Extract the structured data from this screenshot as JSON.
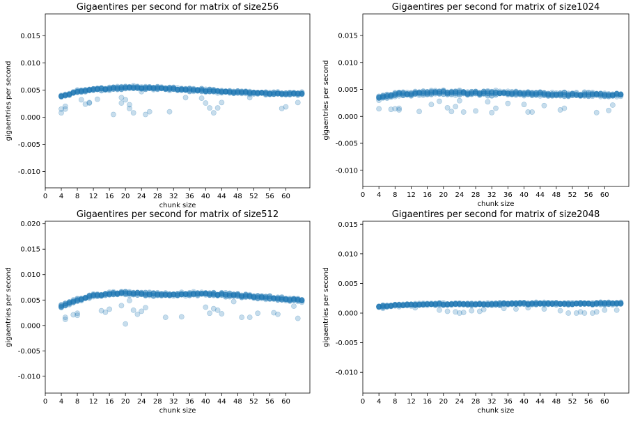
{
  "chart_data": [
    {
      "type": "scatter",
      "title": "Gigaentires per second for matrix of size256",
      "xlabel": "chunk size",
      "ylabel": "gigaentries per second",
      "xlim": [
        0,
        66
      ],
      "ylim": [
        -0.013,
        0.019
      ],
      "xticks": [
        "0",
        "4",
        "8",
        "12",
        "16",
        "20",
        "24",
        "28",
        "32",
        "36",
        "40",
        "44",
        "48",
        "52",
        "56",
        "60"
      ],
      "xtick_values": [
        0,
        4,
        8,
        12,
        16,
        20,
        24,
        28,
        32,
        36,
        40,
        44,
        48,
        52,
        56,
        60
      ],
      "yticks": [
        "-0.010",
        "-0.005",
        "0.000",
        "0.005",
        "0.010",
        "0.015"
      ],
      "ytick_values": [
        -0.01,
        -0.005,
        0,
        0.005,
        0.01,
        0.015
      ],
      "color": "#1f77b4",
      "x_range": [
        4,
        64
      ],
      "trend": [
        [
          4,
          0.0038
        ],
        [
          8,
          0.0047
        ],
        [
          12,
          0.0051
        ],
        [
          16,
          0.0052
        ],
        [
          20,
          0.0055
        ],
        [
          24,
          0.0054
        ],
        [
          28,
          0.0053
        ],
        [
          32,
          0.0052
        ],
        [
          36,
          0.0051
        ],
        [
          40,
          0.0049
        ],
        [
          44,
          0.0047
        ],
        [
          48,
          0.0046
        ],
        [
          52,
          0.0045
        ],
        [
          56,
          0.0044
        ],
        [
          60,
          0.0043
        ],
        [
          64,
          0.0043
        ]
      ],
      "spread": 0.0004,
      "outliers": [
        [
          4,
          0.0008
        ],
        [
          4,
          0.0015
        ],
        [
          5,
          0.002
        ],
        [
          5,
          0.0015
        ],
        [
          9,
          0.0032
        ],
        [
          10,
          0.0024
        ],
        [
          11,
          0.0026
        ],
        [
          11,
          0.0027
        ],
        [
          13,
          0.0033
        ],
        [
          17,
          0.0005
        ],
        [
          19,
          0.0026
        ],
        [
          19,
          0.0036
        ],
        [
          20,
          0.0032
        ],
        [
          21,
          0.0023
        ],
        [
          21,
          0.0016
        ],
        [
          22,
          0.0008
        ],
        [
          24,
          0.0047
        ],
        [
          25,
          0.0005
        ],
        [
          26,
          0.001
        ],
        [
          31,
          0.001
        ],
        [
          35,
          0.0036
        ],
        [
          39,
          0.0035
        ],
        [
          40,
          0.0026
        ],
        [
          41,
          0.0017
        ],
        [
          42,
          0.0008
        ],
        [
          43,
          0.0017
        ],
        [
          44,
          0.0027
        ],
        [
          51,
          0.0036
        ],
        [
          59,
          0.0016
        ],
        [
          60,
          0.0019
        ],
        [
          63,
          0.0027
        ]
      ]
    },
    {
      "type": "scatter",
      "title": "Gigaentires per second for matrix of size1024",
      "xlabel": "chunk size",
      "ylabel": "gigaentries per second",
      "xlim": [
        0,
        66
      ],
      "ylim": [
        -0.013,
        0.019
      ],
      "xticks": [
        "0",
        "4",
        "8",
        "12",
        "16",
        "20",
        "24",
        "28",
        "32",
        "36",
        "40",
        "44",
        "48",
        "52",
        "56",
        "60"
      ],
      "xtick_values": [
        0,
        4,
        8,
        12,
        16,
        20,
        24,
        28,
        32,
        36,
        40,
        44,
        48,
        52,
        56,
        60
      ],
      "yticks": [
        "-0.010",
        "-0.005",
        "0.000",
        "0.005",
        "0.010",
        "0.015"
      ],
      "ytick_values": [
        -0.01,
        -0.005,
        0,
        0.005,
        0.01,
        0.015
      ],
      "color": "#1f77b4",
      "x_range": [
        4,
        64
      ],
      "trend": [
        [
          4,
          0.0035
        ],
        [
          8,
          0.0041
        ],
        [
          12,
          0.0042
        ],
        [
          16,
          0.0044
        ],
        [
          20,
          0.0044
        ],
        [
          24,
          0.0044
        ],
        [
          28,
          0.0043
        ],
        [
          32,
          0.0043
        ],
        [
          36,
          0.0043
        ],
        [
          40,
          0.0042
        ],
        [
          44,
          0.0041
        ],
        [
          48,
          0.004
        ],
        [
          52,
          0.004
        ],
        [
          56,
          0.004
        ],
        [
          60,
          0.004
        ],
        [
          64,
          0.004
        ]
      ],
      "spread": 0.0006,
      "outliers": [
        [
          4,
          0.0014
        ],
        [
          7,
          0.0013
        ],
        [
          8,
          0.0014
        ],
        [
          9,
          0.0012
        ],
        [
          9,
          0.0015
        ],
        [
          14,
          0.0009
        ],
        [
          17,
          0.0022
        ],
        [
          19,
          0.0028
        ],
        [
          21,
          0.0016
        ],
        [
          22,
          0.0009
        ],
        [
          23,
          0.0018
        ],
        [
          24,
          0.0029
        ],
        [
          25,
          0.0008
        ],
        [
          28,
          0.001
        ],
        [
          31,
          0.0027
        ],
        [
          32,
          0.0007
        ],
        [
          33,
          0.0015
        ],
        [
          36,
          0.0024
        ],
        [
          40,
          0.0022
        ],
        [
          41,
          0.0008
        ],
        [
          42,
          0.0008
        ],
        [
          45,
          0.002
        ],
        [
          49,
          0.0012
        ],
        [
          50,
          0.0015
        ],
        [
          58,
          0.0007
        ],
        [
          61,
          0.0011
        ],
        [
          62,
          0.0021
        ]
      ]
    },
    {
      "type": "scatter",
      "title": "Gigaentires per second for matrix of size512",
      "xlabel": "chunk size",
      "ylabel": "gigaentries per second",
      "xlim": [
        0,
        66
      ],
      "ylim": [
        -0.0133,
        0.0205
      ],
      "xticks": [
        "0",
        "4",
        "8",
        "12",
        "16",
        "20",
        "24",
        "28",
        "32",
        "36",
        "40",
        "44",
        "48",
        "52",
        "56",
        "60"
      ],
      "xtick_values": [
        0,
        4,
        8,
        12,
        16,
        20,
        24,
        28,
        32,
        36,
        40,
        44,
        48,
        52,
        56,
        60
      ],
      "yticks": [
        "-0.010",
        "-0.005",
        "0.000",
        "0.005",
        "0.010",
        "0.015",
        "0.020"
      ],
      "ytick_values": [
        -0.01,
        -0.005,
        0,
        0.005,
        0.01,
        0.015,
        0.02
      ],
      "color": "#1f77b4",
      "x_range": [
        4,
        64
      ],
      "trend": [
        [
          4,
          0.0038
        ],
        [
          8,
          0.005
        ],
        [
          12,
          0.0059
        ],
        [
          16,
          0.0062
        ],
        [
          20,
          0.0064
        ],
        [
          24,
          0.0062
        ],
        [
          28,
          0.0061
        ],
        [
          32,
          0.006
        ],
        [
          36,
          0.0062
        ],
        [
          40,
          0.0063
        ],
        [
          44,
          0.0061
        ],
        [
          48,
          0.0059
        ],
        [
          52,
          0.0057
        ],
        [
          56,
          0.0054
        ],
        [
          60,
          0.0052
        ],
        [
          64,
          0.005
        ]
      ],
      "spread": 0.0005,
      "outliers": [
        [
          5,
          0.0012
        ],
        [
          5,
          0.0016
        ],
        [
          7,
          0.0021
        ],
        [
          8,
          0.0024
        ],
        [
          8,
          0.002
        ],
        [
          14,
          0.0029
        ],
        [
          15,
          0.0026
        ],
        [
          16,
          0.0032
        ],
        [
          19,
          0.0039
        ],
        [
          20,
          0.0003
        ],
        [
          21,
          0.0049
        ],
        [
          22,
          0.003
        ],
        [
          23,
          0.0022
        ],
        [
          24,
          0.0028
        ],
        [
          25,
          0.0035
        ],
        [
          30,
          0.0016
        ],
        [
          34,
          0.0017
        ],
        [
          40,
          0.0036
        ],
        [
          41,
          0.0024
        ],
        [
          42,
          0.0033
        ],
        [
          43,
          0.003
        ],
        [
          44,
          0.0023
        ],
        [
          47,
          0.0047
        ],
        [
          49,
          0.0016
        ],
        [
          51,
          0.0016
        ],
        [
          53,
          0.0024
        ],
        [
          57,
          0.0025
        ],
        [
          58,
          0.0022
        ],
        [
          62,
          0.0038
        ],
        [
          63,
          0.0014
        ]
      ]
    },
    {
      "type": "scatter",
      "title": "Gigaentires per second for matrix of size2048",
      "xlabel": "chunk size",
      "ylabel": "gigaentries per second",
      "xlim": [
        0,
        66
      ],
      "ylim": [
        -0.0135,
        0.0155
      ],
      "xticks": [
        "0",
        "4",
        "8",
        "12",
        "16",
        "20",
        "24",
        "28",
        "32",
        "36",
        "40",
        "44",
        "48",
        "52",
        "56",
        "60"
      ],
      "xtick_values": [
        0,
        4,
        8,
        12,
        16,
        20,
        24,
        28,
        32,
        36,
        40,
        44,
        48,
        52,
        56,
        60
      ],
      "yticks": [
        "-0.010",
        "-0.005",
        "0.000",
        "0.005",
        "0.010",
        "0.015"
      ],
      "ytick_values": [
        -0.01,
        -0.005,
        0,
        0.005,
        0.01,
        0.015
      ],
      "color": "#1f77b4",
      "x_range": [
        4,
        64
      ],
      "trend": [
        [
          4,
          0.0011
        ],
        [
          8,
          0.0013
        ],
        [
          12,
          0.0014
        ],
        [
          16,
          0.0015
        ],
        [
          20,
          0.0015
        ],
        [
          24,
          0.0015
        ],
        [
          28,
          0.0015
        ],
        [
          32,
          0.0015
        ],
        [
          36,
          0.0016
        ],
        [
          40,
          0.0016
        ],
        [
          44,
          0.0016
        ],
        [
          48,
          0.0016
        ],
        [
          52,
          0.0016
        ],
        [
          56,
          0.0016
        ],
        [
          60,
          0.0016
        ],
        [
          64,
          0.0016
        ]
      ],
      "spread": 0.0003,
      "outliers": [
        [
          5,
          0.0008
        ],
        [
          13,
          0.0009
        ],
        [
          19,
          0.0005
        ],
        [
          21,
          0.0003
        ],
        [
          23,
          0.0002
        ],
        [
          24,
          0.0
        ],
        [
          25,
          0.0001
        ],
        [
          27,
          0.0004
        ],
        [
          29,
          0.0003
        ],
        [
          30,
          0.0006
        ],
        [
          35,
          0.0008
        ],
        [
          38,
          0.0007
        ],
        [
          41,
          0.0009
        ],
        [
          45,
          0.0007
        ],
        [
          49,
          0.0004
        ],
        [
          51,
          0.0
        ],
        [
          53,
          0.0
        ],
        [
          54,
          0.0002
        ],
        [
          55,
          0.0
        ],
        [
          57,
          0.0
        ],
        [
          58,
          0.0002
        ],
        [
          60,
          0.0005
        ],
        [
          63,
          0.0005
        ]
      ]
    }
  ]
}
